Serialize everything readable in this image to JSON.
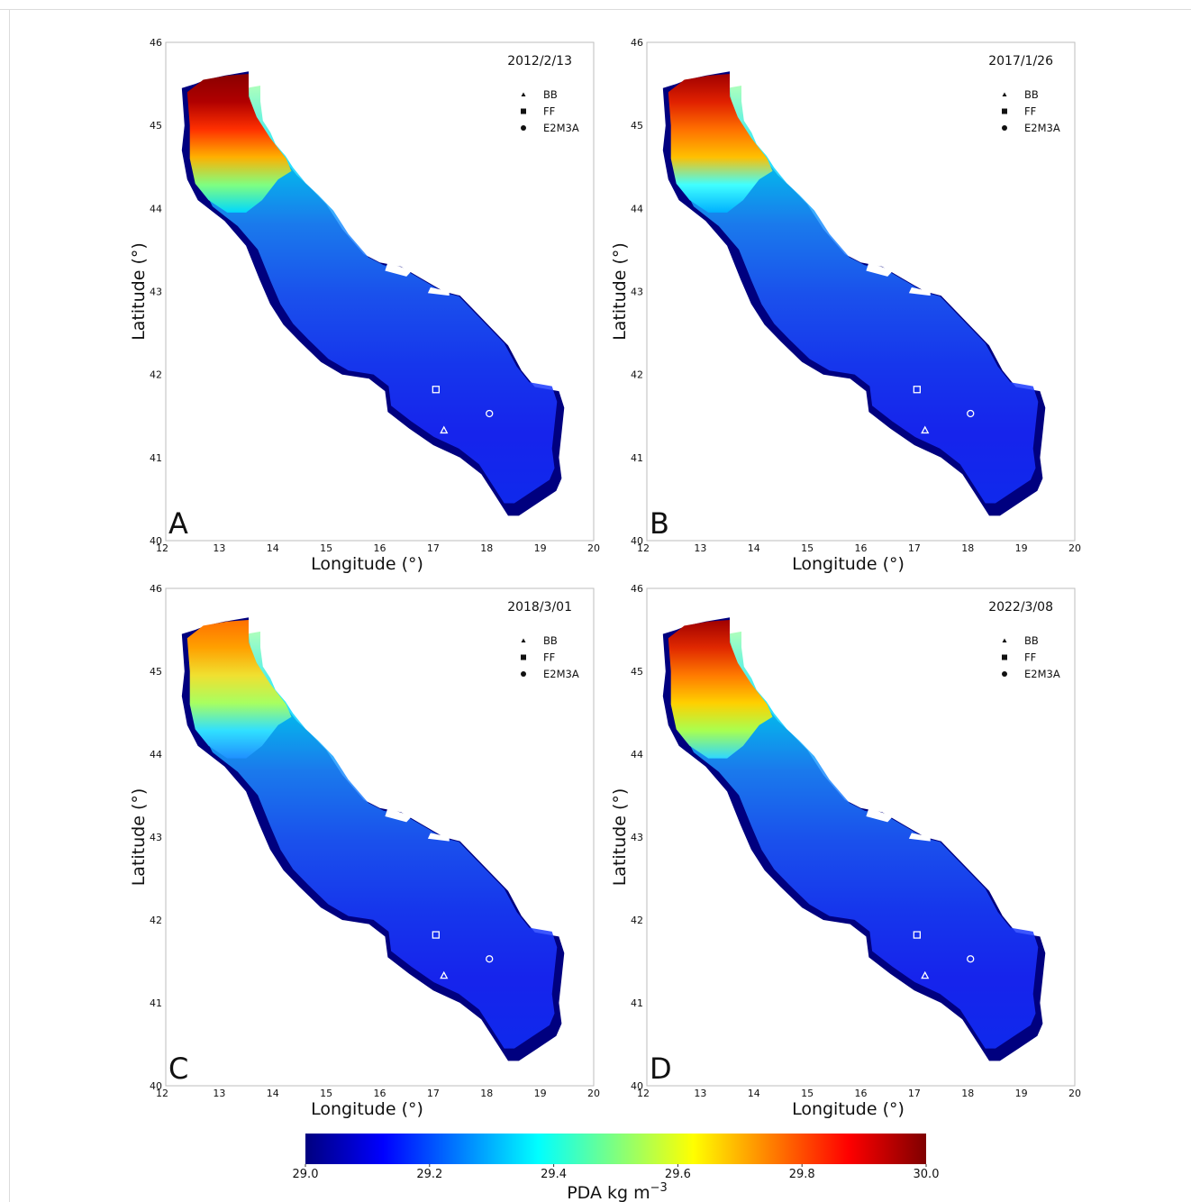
{
  "chart_data": {
    "type": "heatmap",
    "description_unit": "PDA kg m-3",
    "panels": [
      {
        "letter": "A",
        "date": "2012/2/13"
      },
      {
        "letter": "B",
        "date": "2017/1/26"
      },
      {
        "letter": "C",
        "date": "2018/3/01"
      },
      {
        "letter": "D",
        "date": "2022/3/08"
      }
    ],
    "x_ticks": [
      "12",
      "13",
      "14",
      "15",
      "16",
      "17",
      "18",
      "19",
      "20"
    ],
    "y_ticks": [
      "40",
      "41",
      "42",
      "43",
      "44",
      "45",
      "46"
    ],
    "xlim": [
      12,
      20
    ],
    "ylim": [
      40,
      46
    ],
    "xlabel": "Longitude (°)",
    "ylabel": "Latitude (°)",
    "legend": [
      {
        "label": "BB",
        "marker": "triangle"
      },
      {
        "label": "FF",
        "marker": "square"
      },
      {
        "label": "E2M3A",
        "marker": "circle"
      }
    ],
    "stations": [
      {
        "name": "BB",
        "lon": 17.2,
        "lat": 41.33
      },
      {
        "name": "FF",
        "lon": 17.05,
        "lat": 41.82
      },
      {
        "name": "E2M3A",
        "lon": 18.05,
        "lat": 41.53
      }
    ],
    "colorbar": {
      "ticks": [
        "29.0",
        "29.2",
        "29.4",
        "29.6",
        "29.8",
        "30.0"
      ],
      "range": [
        29.0,
        30.0
      ],
      "label": "PDA kg m",
      "label_sup": "−3",
      "colormap": "jet"
    }
  },
  "colors": {
    "axis": "#bdbdbd",
    "station_marker": "#ffffff",
    "colormap_stops": [
      "#00007f",
      "#0000ff",
      "#007fff",
      "#00ffff",
      "#7fff7f",
      "#ffff00",
      "#ff7f00",
      "#ff0000",
      "#7f0000"
    ]
  }
}
